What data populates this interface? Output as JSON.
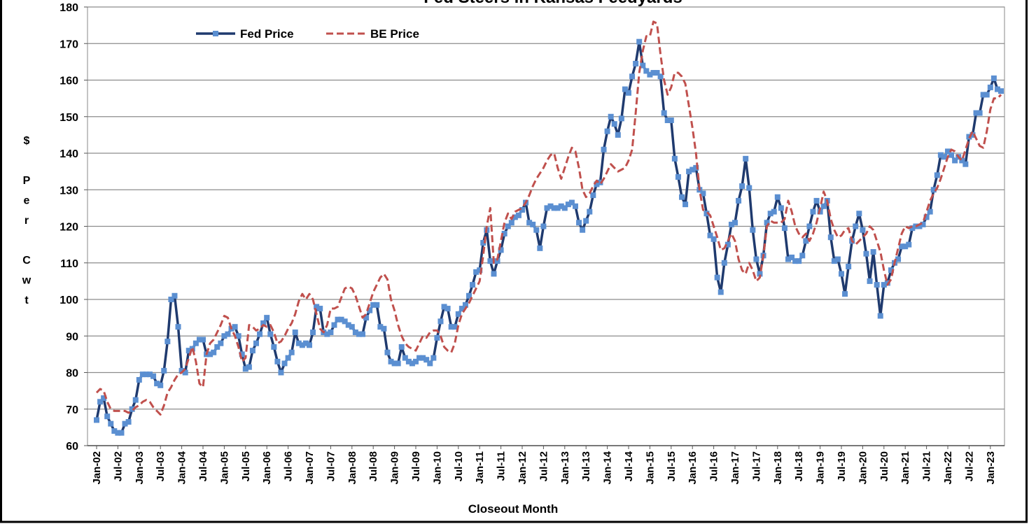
{
  "chart_data": {
    "type": "line",
    "title": "Fed Steers in Kansas Feedyards",
    "x_label": "Closeout Month",
    "y_label": "$ Per Cwt",
    "categories": [
      "Jan-02",
      null,
      null,
      null,
      null,
      null,
      "Jul-02",
      null,
      null,
      null,
      null,
      null,
      "Jan-03",
      null,
      null,
      null,
      null,
      null,
      "Jul-03",
      null,
      null,
      null,
      null,
      null,
      "Jan-04",
      null,
      null,
      null,
      null,
      null,
      "Jul-04",
      null,
      null,
      null,
      null,
      null,
      "Jan-05",
      null,
      null,
      null,
      null,
      null,
      "Jul-05",
      null,
      null,
      null,
      null,
      null,
      "Jan-06",
      null,
      null,
      null,
      null,
      null,
      "Jul-06",
      null,
      null,
      null,
      null,
      null,
      "Jan-07",
      null,
      null,
      null,
      null,
      null,
      "Jul-07",
      null,
      null,
      null,
      null,
      null,
      "Jan-08",
      null,
      null,
      null,
      null,
      null,
      "Jul-08",
      null,
      null,
      null,
      null,
      null,
      "Jan-09",
      null,
      null,
      null,
      null,
      null,
      "Jul-09",
      null,
      null,
      null,
      null,
      null,
      "Jan-10",
      null,
      null,
      null,
      null,
      null,
      "Jul-10",
      null,
      null,
      null,
      null,
      null,
      "Jan-11",
      null,
      null,
      null,
      null,
      null,
      "Jul-11",
      null,
      null,
      null,
      null,
      null,
      "Jan-12",
      null,
      null,
      null,
      null,
      null,
      "Jul-12",
      null,
      null,
      null,
      null,
      null,
      "Jan-13",
      null,
      null,
      null,
      null,
      null,
      "Jul-13",
      null,
      null,
      null,
      null,
      null,
      "Jan-14",
      null,
      null,
      null,
      null,
      null,
      "Jul-14",
      null,
      null,
      null,
      null,
      null,
      "Jan-15",
      null,
      null,
      null,
      null,
      null,
      "Jul-15",
      null,
      null,
      null,
      null,
      null,
      "Jan-16",
      null,
      null,
      null,
      null,
      null,
      "Jul-16",
      null,
      null,
      null,
      null,
      null,
      "Jan-17",
      null,
      null,
      null,
      null,
      null,
      "Jul-17",
      null,
      null,
      null,
      null,
      null,
      "Jan-18",
      null,
      null,
      null,
      null,
      null,
      "Jul-18",
      null,
      null,
      null,
      null,
      null,
      "Jan-19",
      null,
      null,
      null,
      null,
      null,
      "Jul-19",
      null,
      null,
      null,
      null,
      null,
      "Jan-20",
      null,
      null,
      null,
      null,
      null,
      "Jul-20",
      null,
      null,
      null,
      null,
      null,
      "Jan-21",
      null,
      null,
      null,
      null,
      null,
      "Jul-21",
      null,
      null,
      null,
      null,
      null,
      "Jan-22",
      null,
      null,
      null,
      null,
      null,
      "Jul-22",
      null,
      null,
      null,
      null,
      null,
      "Jan-23",
      null,
      null,
      null
    ],
    "series": [
      {
        "name": "Fed Price",
        "color": "#1f3a6e",
        "marker_color": "#5b8fd1",
        "line_style": "solid",
        "marker": "square",
        "values": [
          67,
          72,
          73,
          68,
          66,
          64,
          63.5,
          63.5,
          66,
          66.5,
          70,
          72.5,
          78,
          79.5,
          79.5,
          79.5,
          79,
          77,
          76.5,
          80.5,
          88.5,
          100,
          101,
          92.5,
          80.5,
          80,
          86,
          86.5,
          88,
          89,
          89,
          85,
          85,
          85.5,
          87,
          88,
          90,
          90.5,
          92,
          92.5,
          90,
          85,
          81,
          81.5,
          86,
          88,
          90.5,
          93.5,
          95,
          90.5,
          87,
          83,
          80,
          82.5,
          84,
          85.5,
          91,
          88,
          87.5,
          88,
          87.5,
          91,
          98,
          97.5,
          91,
          90.5,
          91,
          93,
          94.5,
          94.5,
          94,
          93,
          92.5,
          91,
          90.5,
          90.5,
          95,
          97,
          98.5,
          98.5,
          92.5,
          92,
          85.5,
          83,
          82.5,
          82.5,
          87,
          84,
          83,
          82.5,
          83,
          84,
          84,
          83.5,
          82.5,
          84,
          89.5,
          94,
          98,
          97.5,
          92.5,
          92.5,
          96,
          97.5,
          98.5,
          101,
          104,
          107.5,
          108,
          115.5,
          119,
          110.5,
          107,
          110.5,
          113.5,
          118,
          120,
          121,
          122.5,
          123,
          124.5,
          126.5,
          121,
          120.5,
          119,
          114,
          120,
          125,
          125.5,
          125,
          125,
          125.5,
          125,
          126,
          126.5,
          125.5,
          121,
          119,
          121.5,
          124,
          128.5,
          131.5,
          132,
          141,
          146,
          150,
          148,
          145,
          149.5,
          157.5,
          156.5,
          161,
          164.5,
          170.5,
          164,
          162.5,
          161.5,
          162,
          162,
          161,
          151,
          149,
          149,
          138.5,
          133.5,
          128,
          126,
          135,
          135.5,
          136,
          130,
          129,
          123.5,
          117.5,
          116.5,
          106,
          102,
          110,
          115,
          120.5,
          121,
          127,
          131,
          138.5,
          130.5,
          119,
          111,
          107,
          112,
          121,
          123.5,
          124,
          128,
          125,
          119.5,
          111,
          111.5,
          110.5,
          110.5,
          112,
          116,
          120,
          124,
          127,
          124,
          125.5,
          127,
          117,
          110.5,
          111,
          107,
          101.5,
          109,
          116,
          120,
          123.5,
          119,
          112.5,
          105,
          113,
          104,
          95.5,
          104,
          104.5,
          108,
          110,
          111,
          114.5,
          114.5,
          115,
          119.5,
          120,
          120,
          120.5,
          122.5,
          124,
          130,
          134,
          139.5,
          139,
          140.5,
          139.5,
          138,
          139,
          138,
          137,
          144.5,
          145,
          151,
          151,
          156,
          156,
          158,
          160.5,
          157.5,
          157
        ]
      },
      {
        "name": "BE Price",
        "color": "#c0504d",
        "line_style": "dashed",
        "values": [
          74.5,
          75.5,
          75,
          72,
          70,
          69.5,
          69.5,
          69.5,
          69.5,
          69,
          69.5,
          70.5,
          71,
          72,
          72.5,
          72,
          70.5,
          69.5,
          68.5,
          71,
          74.5,
          76,
          78,
          79.5,
          80,
          81,
          84,
          87,
          83,
          77,
          76,
          85,
          88,
          89,
          91,
          93,
          95.5,
          95,
          92,
          90,
          87,
          83,
          84,
          93,
          92.5,
          91.5,
          92,
          93,
          92.5,
          93,
          91,
          88,
          88.5,
          90,
          92,
          93.5,
          96,
          99.5,
          101.5,
          100,
          101.5,
          100,
          96,
          92,
          91,
          93,
          97.5,
          97.5,
          98,
          100.5,
          103,
          103.5,
          103,
          101,
          98,
          95,
          96,
          99,
          102,
          104,
          106,
          107,
          105.5,
          100,
          97,
          93,
          90,
          88,
          87,
          86.5,
          86,
          88,
          90,
          89.5,
          91,
          91.5,
          91.5,
          90,
          87,
          86,
          85.5,
          88,
          93,
          96,
          97.5,
          99,
          101,
          103,
          105,
          112,
          120,
          125,
          110,
          111,
          116,
          121,
          123.5,
          122,
          124,
          124.5,
          125,
          126.5,
          128.5,
          131,
          133,
          134.5,
          136,
          138,
          139.5,
          140,
          136,
          133,
          136,
          139,
          141.5,
          140.5,
          136,
          130,
          128,
          129,
          131,
          132.5,
          131.5,
          133,
          135,
          137,
          136,
          135,
          135.5,
          136,
          138,
          141,
          151,
          162,
          168,
          172,
          172,
          176,
          175.5,
          167,
          160,
          156,
          158,
          162,
          162,
          161,
          159,
          153,
          147,
          140,
          130,
          124.5,
          124,
          123,
          120,
          117,
          113.5,
          114,
          116,
          118,
          116,
          111,
          108,
          107,
          110,
          108,
          105,
          106,
          112,
          120,
          121.5,
          121,
          121,
          121,
          122,
          127,
          124,
          120,
          118,
          117,
          118,
          116,
          118,
          121,
          125,
          129.5,
          127,
          122,
          119,
          117,
          117.5,
          119,
          119.5,
          116,
          115,
          116,
          117,
          118,
          120,
          119,
          116,
          113,
          108,
          104,
          105.5,
          110,
          114,
          118,
          120,
          119.5,
          120,
          120,
          120.5,
          121,
          124,
          127,
          129,
          130.5,
          133,
          136,
          139,
          141,
          140.5,
          139,
          138,
          141,
          144,
          146,
          144,
          142,
          141.5,
          146,
          152,
          155,
          155,
          156
        ]
      }
    ],
    "ylim": [
      60,
      180
    ],
    "yticks": [
      60,
      70,
      80,
      90,
      100,
      110,
      120,
      130,
      140,
      150,
      160,
      170,
      180
    ],
    "grid": true,
    "legend": "top-left"
  }
}
